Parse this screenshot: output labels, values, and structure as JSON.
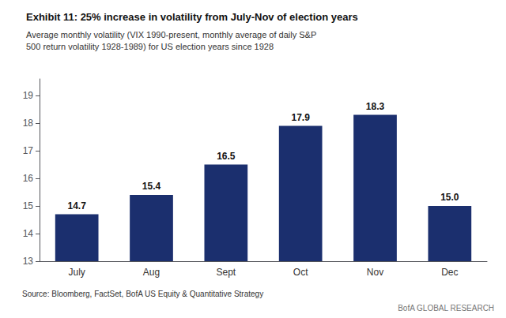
{
  "chart_data": {
    "type": "bar",
    "title": "Exhibit 11: 25% increase in volatility from July-Nov of election years",
    "subtitle": "Average monthly volatility (VIX 1990-present, monthly average of daily S&P\n500 return volatility 1928-1989) for US election years since 1928",
    "categories": [
      "July",
      "Aug",
      "Sept",
      "Oct",
      "Nov",
      "Dec"
    ],
    "values": [
      14.7,
      15.4,
      16.5,
      17.9,
      18.3,
      15.0
    ],
    "value_labels": [
      "14.7",
      "15.4",
      "16.5",
      "17.9",
      "18.3",
      "15.0"
    ],
    "data_labels": true,
    "color": "#1b2f6e",
    "ylim": [
      13,
      19.6
    ],
    "yticks": [
      13,
      14,
      15,
      16,
      17,
      18,
      19
    ],
    "grid": false,
    "annotations": [
      "Source: Bloomberg, FactSet, BofA US Equity & Quantitative Strategy",
      "BofA GLOBAL RESEARCH"
    ]
  }
}
